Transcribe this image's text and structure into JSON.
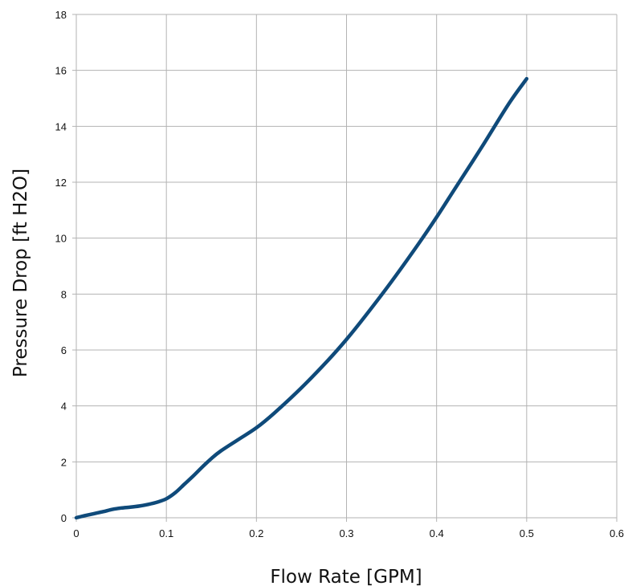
{
  "chart_data": {
    "type": "line",
    "title": "",
    "xlabel": "Flow Rate [GPM]",
    "ylabel": "Pressure Drop [ft H2O]",
    "xlim": [
      0,
      0.6
    ],
    "ylim": [
      0,
      18
    ],
    "xticks": [
      0,
      0.1,
      0.2,
      0.3,
      0.4,
      0.5,
      0.6
    ],
    "xtick_labels": [
      "0",
      "0.1",
      "0.2",
      "0.3",
      "0.4",
      "0.5",
      "0.6"
    ],
    "yticks": [
      0,
      2,
      4,
      6,
      8,
      10,
      12,
      14,
      16,
      18
    ],
    "ytick_labels": [
      "0",
      "2",
      "4",
      "6",
      "8",
      "10",
      "12",
      "14",
      "16",
      "18"
    ],
    "grid": true,
    "legend": "none",
    "series": [
      {
        "color": "#0f4a7a",
        "x": [
          0,
          0.01,
          0.02,
          0.03,
          0.04,
          0.05,
          0.06,
          0.07,
          0.08,
          0.09,
          0.1,
          0.11,
          0.12,
          0.13,
          0.14,
          0.15,
          0.16,
          0.18,
          0.2,
          0.22,
          0.25,
          0.28,
          0.3,
          0.32,
          0.35,
          0.38,
          0.4,
          0.42,
          0.45,
          0.48,
          0.5
        ],
        "y": [
          0,
          0.08,
          0.15,
          0.22,
          0.3,
          0.35,
          0.38,
          0.42,
          0.48,
          0.56,
          0.68,
          0.9,
          1.2,
          1.5,
          1.82,
          2.12,
          2.38,
          2.8,
          3.22,
          3.75,
          4.65,
          5.65,
          6.38,
          7.18,
          8.45,
          9.8,
          10.75,
          11.75,
          13.25,
          14.8,
          15.7
        ]
      }
    ]
  }
}
